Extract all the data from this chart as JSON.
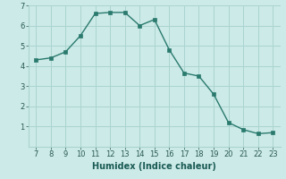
{
  "x": [
    7,
    8,
    9,
    10,
    11,
    12,
    13,
    14,
    15,
    16,
    17,
    18,
    19,
    20,
    21,
    22,
    23
  ],
  "y": [
    4.3,
    4.4,
    4.7,
    5.5,
    6.6,
    6.65,
    6.65,
    6.0,
    6.3,
    4.8,
    3.65,
    3.5,
    2.6,
    1.2,
    0.85,
    0.65,
    0.7
  ],
  "xlabel": "Humidex (Indice chaleur)",
  "line_color": "#2a7a6e",
  "marker_color": "#2a7a6e",
  "bg_color": "#cceae7",
  "grid_color": "#aad4d0",
  "tick_label_color": "#2a5a54",
  "xlabel_color": "#1a5a54",
  "ylim": [
    0,
    7
  ],
  "xlim": [
    6.5,
    23.5
  ],
  "yticks": [
    1,
    2,
    3,
    4,
    5,
    6,
    7
  ],
  "xticks": [
    7,
    8,
    9,
    10,
    11,
    12,
    13,
    14,
    15,
    16,
    17,
    18,
    19,
    20,
    21,
    22,
    23
  ]
}
